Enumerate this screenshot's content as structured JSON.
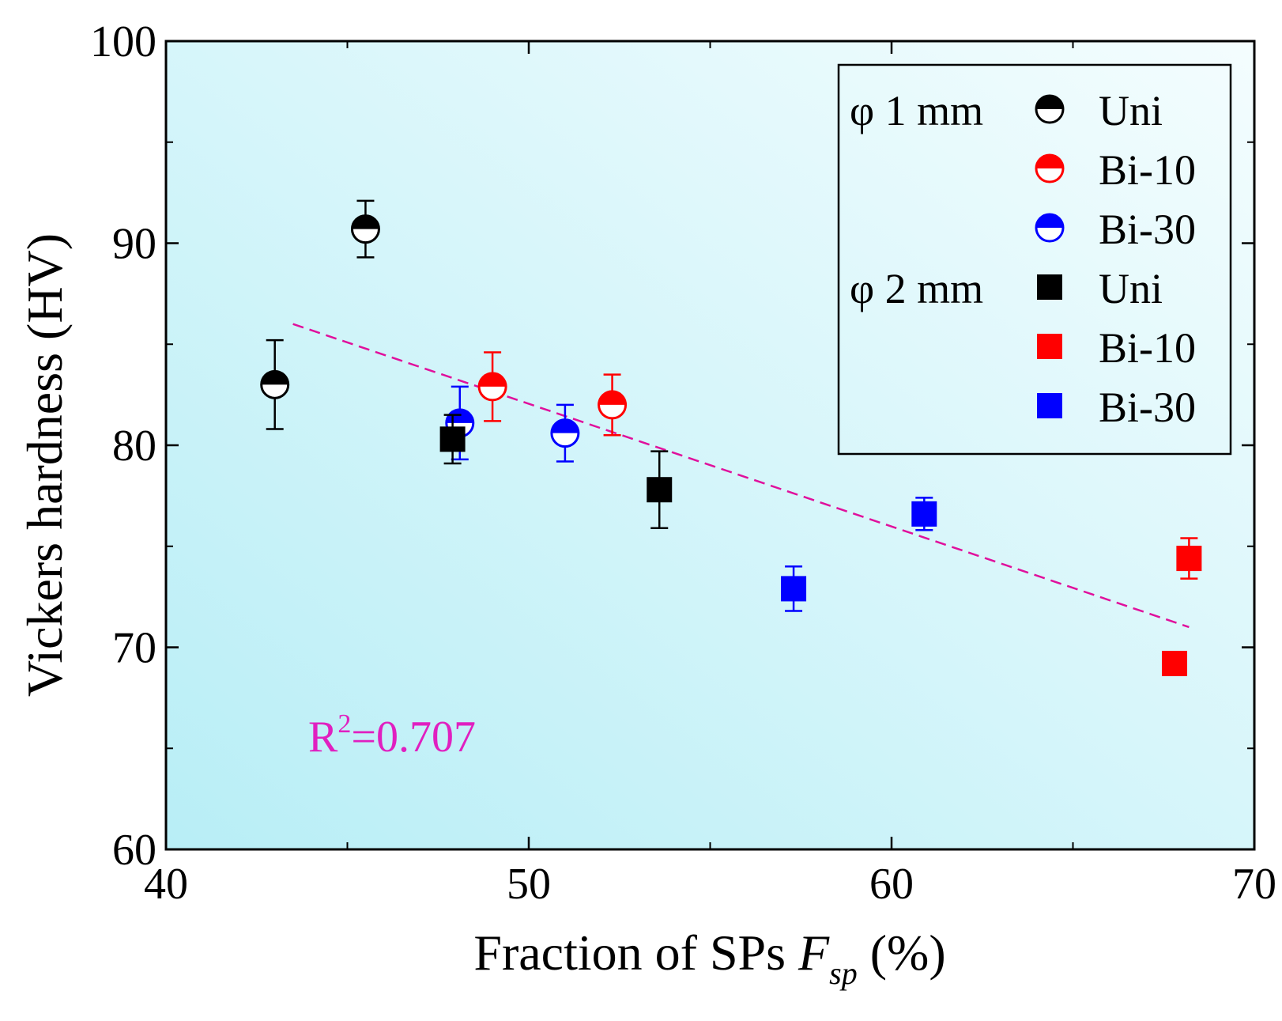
{
  "chart_data": {
    "type": "scatter",
    "title": "",
    "xlabel_main": "Fraction of SPs ",
    "xlabel_var": "F",
    "xlabel_sub": "sp",
    "xlabel_unit": " (%)",
    "ylabel": "Vickers hardness (HV)",
    "xlim": [
      40,
      70
    ],
    "ylim": [
      60,
      100
    ],
    "x_ticks": [
      40,
      50,
      60,
      70
    ],
    "y_ticks": [
      60,
      70,
      80,
      90,
      100
    ],
    "grid": false,
    "legend_position": "top-right",
    "legend_groups": [
      {
        "label": "φ 1 mm"
      },
      {
        "label": "φ 2 mm"
      }
    ],
    "series": [
      {
        "name": "Uni",
        "group": "φ 1 mm",
        "marker": "half-circle",
        "color": "#000000",
        "points": [
          {
            "x": 43.0,
            "y": 83.0,
            "err": 2.2
          },
          {
            "x": 45.5,
            "y": 90.7,
            "err": 1.4
          }
        ]
      },
      {
        "name": "Bi-10",
        "group": "φ 1 mm",
        "marker": "half-circle",
        "color": "#ff0000",
        "points": [
          {
            "x": 49.0,
            "y": 82.9,
            "err": 1.7
          },
          {
            "x": 52.3,
            "y": 82.0,
            "err": 1.5
          }
        ]
      },
      {
        "name": "Bi-30",
        "group": "φ 1 mm",
        "marker": "half-circle",
        "color": "#0000ff",
        "points": [
          {
            "x": 48.1,
            "y": 81.1,
            "err": 1.8
          },
          {
            "x": 51.0,
            "y": 80.6,
            "err": 1.4
          }
        ]
      },
      {
        "name": "Uni",
        "group": "φ 2 mm",
        "marker": "square",
        "color": "#000000",
        "points": [
          {
            "x": 47.9,
            "y": 80.3,
            "err": 1.2
          },
          {
            "x": 53.6,
            "y": 77.8,
            "err": 1.9
          }
        ]
      },
      {
        "name": "Bi-10",
        "group": "φ 2 mm",
        "marker": "square",
        "color": "#ff0000",
        "points": [
          {
            "x": 67.8,
            "y": 69.2,
            "err": 0.3
          },
          {
            "x": 68.2,
            "y": 74.4,
            "err": 1.0
          }
        ]
      },
      {
        "name": "Bi-30",
        "group": "φ 2 mm",
        "marker": "square",
        "color": "#0000ff",
        "points": [
          {
            "x": 57.3,
            "y": 72.9,
            "err": 1.1
          },
          {
            "x": 60.9,
            "y": 76.6,
            "err": 0.8
          }
        ]
      }
    ],
    "fit_line": {
      "x": [
        43.5,
        68.2
      ],
      "y": [
        86.0,
        71.0
      ],
      "color": "#e0109c",
      "style": "dashed"
    },
    "annotation": {
      "text_main": "R",
      "text_sup": "2",
      "text_rest": "=0.707",
      "x": 43.8,
      "y": 66.3,
      "color": "#e020c0"
    },
    "background_gradient": [
      "#b8eef6",
      "#f4fdfe"
    ]
  }
}
